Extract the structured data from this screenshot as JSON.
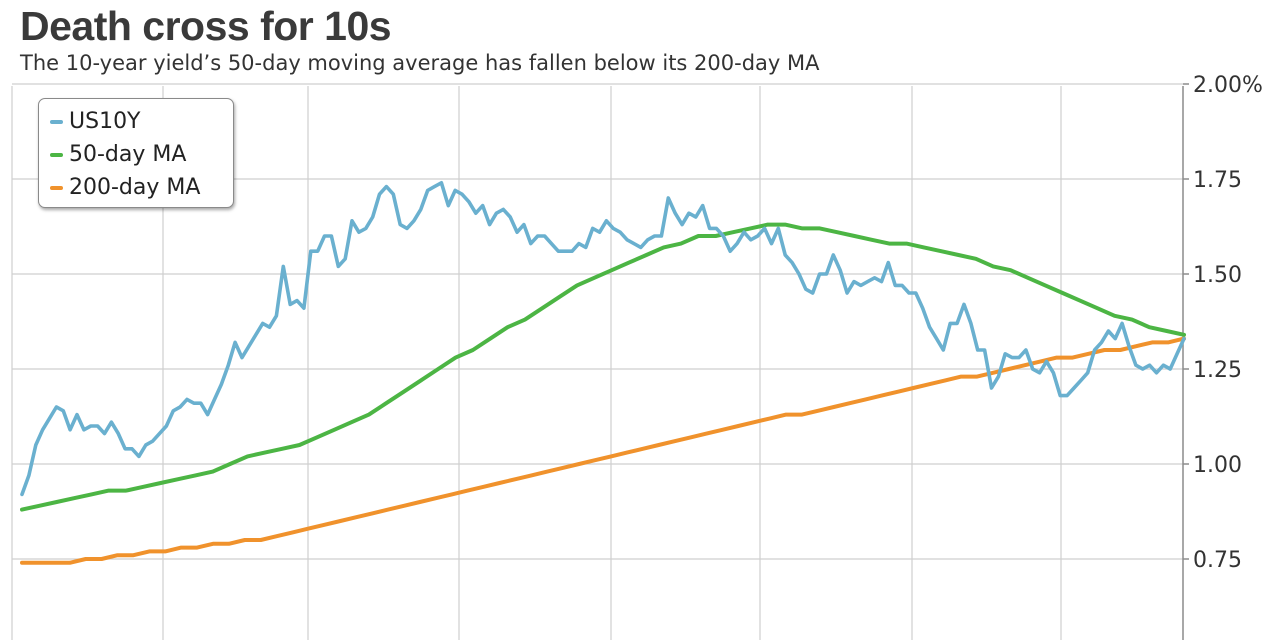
{
  "title": "Death cross for 10s",
  "subtitle": "The 10-year yield’s 50-day moving average has fallen below its 200-day MA",
  "colors": {
    "us10y": "#6ab0cf",
    "ma50": "#4cb544",
    "ma200": "#f0922c",
    "grid": "#cfcfcf",
    "axis": "#8c8c8c"
  },
  "chart_data": {
    "type": "line",
    "title": "Death cross for 10s",
    "subtitle": "The 10-year yield’s 50-day moving average has fallen below its 200-day MA",
    "xlabel": "",
    "ylabel": "",
    "ylim": [
      0.6,
      2.0
    ],
    "y_ticks": [
      "2.00%",
      "1.75",
      "1.50",
      "1.25",
      "1.00",
      "0.75"
    ],
    "y_tick_values": [
      2.0,
      1.75,
      1.5,
      1.25,
      1.0,
      0.75
    ],
    "grid": true,
    "legend": "top-left",
    "series": [
      {
        "name": "US10Y",
        "values": [
          0.92,
          0.97,
          1.05,
          1.09,
          1.12,
          1.15,
          1.14,
          1.09,
          1.13,
          1.09,
          1.1,
          1.1,
          1.08,
          1.11,
          1.08,
          1.04,
          1.04,
          1.02,
          1.05,
          1.06,
          1.08,
          1.1,
          1.14,
          1.15,
          1.17,
          1.16,
          1.16,
          1.13,
          1.17,
          1.21,
          1.26,
          1.32,
          1.28,
          1.31,
          1.34,
          1.37,
          1.36,
          1.39,
          1.52,
          1.42,
          1.43,
          1.41,
          1.56,
          1.56,
          1.6,
          1.6,
          1.52,
          1.54,
          1.64,
          1.61,
          1.62,
          1.65,
          1.71,
          1.73,
          1.71,
          1.63,
          1.62,
          1.64,
          1.67,
          1.72,
          1.73,
          1.74,
          1.68,
          1.72,
          1.71,
          1.69,
          1.66,
          1.68,
          1.63,
          1.66,
          1.67,
          1.65,
          1.61,
          1.63,
          1.58,
          1.6,
          1.6,
          1.58,
          1.56,
          1.56,
          1.56,
          1.58,
          1.57,
          1.62,
          1.61,
          1.64,
          1.62,
          1.61,
          1.59,
          1.58,
          1.57,
          1.59,
          1.6,
          1.6,
          1.7,
          1.66,
          1.63,
          1.66,
          1.65,
          1.68,
          1.62,
          1.62,
          1.6,
          1.56,
          1.58,
          1.61,
          1.59,
          1.6,
          1.62,
          1.58,
          1.62,
          1.55,
          1.53,
          1.5,
          1.46,
          1.45,
          1.5,
          1.5,
          1.55,
          1.51,
          1.45,
          1.48,
          1.47,
          1.48,
          1.49,
          1.48,
          1.53,
          1.47,
          1.47,
          1.45,
          1.45,
          1.41,
          1.36,
          1.33,
          1.3,
          1.37,
          1.37,
          1.42,
          1.37,
          1.3,
          1.3,
          1.2,
          1.23,
          1.29,
          1.28,
          1.28,
          1.3,
          1.25,
          1.24,
          1.27,
          1.24,
          1.18,
          1.18,
          1.2,
          1.22,
          1.24,
          1.3,
          1.32,
          1.35,
          1.33,
          1.37,
          1.31,
          1.26,
          1.25,
          1.26,
          1.24,
          1.26,
          1.25,
          1.29,
          1.33
        ]
      },
      {
        "name": "50-day MA",
        "values": [
          0.88,
          0.89,
          0.9,
          0.91,
          0.92,
          0.93,
          0.93,
          0.94,
          0.95,
          0.96,
          0.97,
          0.98,
          1.0,
          1.02,
          1.03,
          1.04,
          1.05,
          1.07,
          1.09,
          1.11,
          1.13,
          1.16,
          1.19,
          1.22,
          1.25,
          1.28,
          1.3,
          1.33,
          1.36,
          1.38,
          1.41,
          1.44,
          1.47,
          1.49,
          1.51,
          1.53,
          1.55,
          1.57,
          1.58,
          1.6,
          1.6,
          1.61,
          1.62,
          1.63,
          1.63,
          1.62,
          1.62,
          1.61,
          1.6,
          1.59,
          1.58,
          1.58,
          1.57,
          1.56,
          1.55,
          1.54,
          1.52,
          1.51,
          1.49,
          1.47,
          1.45,
          1.43,
          1.41,
          1.39,
          1.38,
          1.36,
          1.35,
          1.34
        ]
      },
      {
        "name": "200-day MA",
        "values": [
          0.74,
          0.74,
          0.74,
          0.74,
          0.75,
          0.75,
          0.76,
          0.76,
          0.77,
          0.77,
          0.78,
          0.78,
          0.79,
          0.79,
          0.8,
          0.8,
          0.81,
          0.82,
          0.83,
          0.84,
          0.85,
          0.86,
          0.87,
          0.88,
          0.89,
          0.9,
          0.91,
          0.92,
          0.93,
          0.94,
          0.95,
          0.96,
          0.97,
          0.98,
          0.99,
          1.0,
          1.01,
          1.02,
          1.03,
          1.04,
          1.05,
          1.06,
          1.07,
          1.08,
          1.09,
          1.1,
          1.11,
          1.12,
          1.13,
          1.13,
          1.14,
          1.15,
          1.16,
          1.17,
          1.18,
          1.19,
          1.2,
          1.21,
          1.22,
          1.23,
          1.23,
          1.24,
          1.25,
          1.26,
          1.27,
          1.28,
          1.28,
          1.29,
          1.3,
          1.3,
          1.31,
          1.32,
          1.32,
          1.33
        ]
      }
    ]
  }
}
